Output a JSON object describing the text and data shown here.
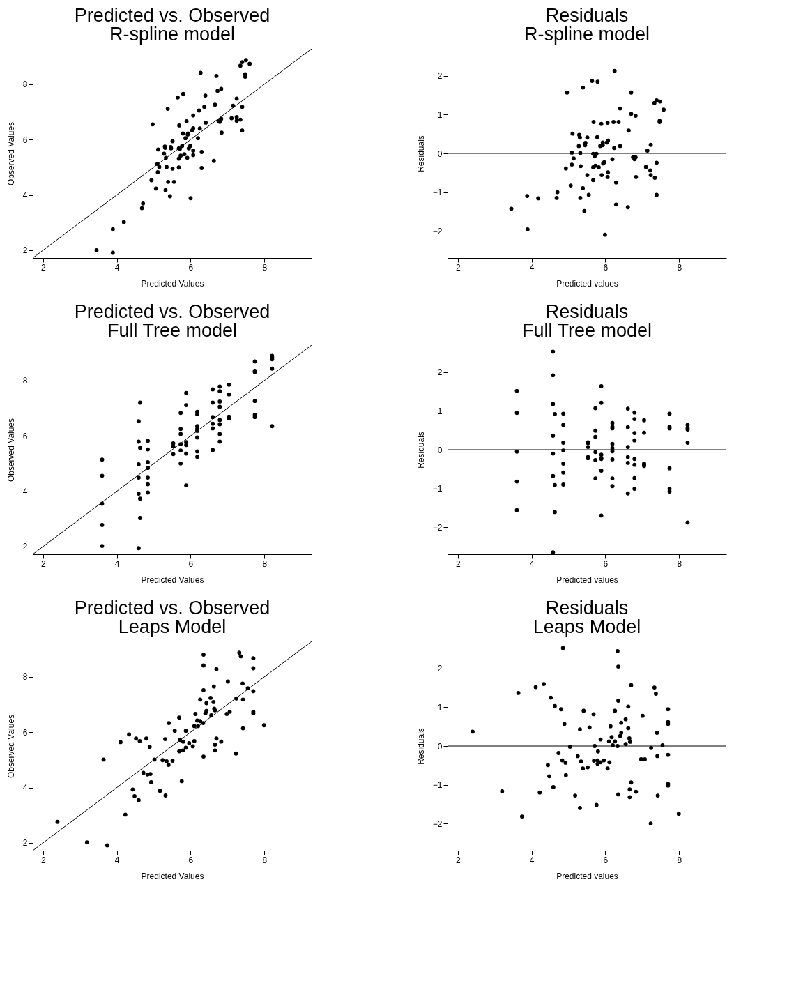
{
  "chart_data": [
    {
      "type": "scatter",
      "title": "Predicted vs. Observed",
      "subtitle": "R-spline model",
      "xlabel": "Predicted Values",
      "ylabel": "Observed Values",
      "xlim": [
        1.72,
        9.28
      ],
      "ylim": [
        1.72,
        9.28
      ],
      "xticks": [
        2,
        4,
        6,
        8
      ],
      "yticks": [
        2,
        4,
        6,
        8
      ],
      "series": [
        {
          "type": "scatter",
          "marker": "circle",
          "color": "#000000",
          "x": [
            3.45,
            3.89,
            3.89,
            4.19,
            4.71,
            4.68,
            4.94,
            5.06,
            5.32,
            5.44,
            5.39,
            5.55,
            6.0,
            4.97,
            5.11,
            5.1,
            5.15,
            5.35,
            5.51,
            5.68,
            5.12,
            5.28,
            5.33,
            5.3,
            5.31,
            5.46,
            5.47,
            5.51,
            5.38,
            5.65,
            5.8,
            5.69,
            5.68,
            5.71,
            5.77,
            5.73,
            5.83,
            5.68,
            5.91,
            5.79,
            5.86,
            5.92,
            5.93,
            5.89,
            6.04,
            6.07,
            5.95,
            5.99,
            6.07,
            6.07,
            6.07,
            6.2,
            6.25,
            6.3,
            6.3,
            6.27,
            6.23,
            6.37,
            6.4,
            6.41,
            6.66,
            6.63,
            6.7,
            6.73,
            6.83,
            6.76,
            6.79,
            6.83,
            6.84,
            7.11,
            7.15,
            7.25,
            7.25,
            7.25,
            7.35,
            7.4,
            7.4,
            7.35,
            7.4,
            7.5,
            7.6,
            7.48,
            7.48
          ],
          "values": [
            2.0,
            1.91,
            2.76,
            3.02,
            3.69,
            3.52,
            4.53,
            4.23,
            4.17,
            3.95,
            4.47,
            4.47,
            3.88,
            6.55,
            4.82,
            5.12,
            5.01,
            5.01,
            4.95,
            4.99,
            5.64,
            5.49,
            5.34,
            5.75,
            5.7,
            5.73,
            5.68,
            5.94,
            7.11,
            7.52,
            7.65,
            6.51,
            5.68,
            5.67,
            5.77,
            5.42,
            5.47,
            5.31,
            5.34,
            6.22,
            6.05,
            6.18,
            6.22,
            6.66,
            6.33,
            6.41,
            5.68,
            5.77,
            5.6,
            5.44,
            6.87,
            6.05,
            6.4,
            5.55,
            4.97,
            8.41,
            7.05,
            7.18,
            7.59,
            6.61,
            7.26,
            5.23,
            8.3,
            7.76,
            7.83,
            6.66,
            6.64,
            6.75,
            6.25,
            6.77,
            7.22,
            7.48,
            6.81,
            6.68,
            6.72,
            7.18,
            6.33,
            8.67,
            8.8,
            8.87,
            8.74,
            8.36,
            8.27
          ]
        },
        {
          "type": "line",
          "color": "#000000",
          "x": [
            1.72,
            9.28
          ],
          "values": [
            1.72,
            9.28
          ]
        }
      ]
    },
    {
      "type": "scatter",
      "title": "Residuals",
      "subtitle": "R-spline model",
      "xlabel": "Predicted values",
      "ylabel": "Residuals",
      "xlim": [
        1.72,
        9.28
      ],
      "ylim": [
        -2.7,
        2.7
      ],
      "xticks": [
        2,
        4,
        6,
        8
      ],
      "yticks": [
        -2,
        -1,
        0,
        1,
        2
      ],
      "ref_lines": [
        {
          "axis": "y",
          "value": 0
        }
      ],
      "series": [
        {
          "type": "scatter",
          "marker": "circle",
          "color": "#000000",
          "x": [
            6.25,
            5.64,
            5.79,
            5.39,
            4.96,
            6.7,
            7.39,
            7.48,
            7.33,
            7.58,
            6.4,
            6.7,
            6.82,
            7.47,
            7.47,
            5.68,
            5.89,
            6.06,
            6.22,
            6.36,
            6.63,
            5.11,
            5.29,
            5.31,
            5.51,
            5.78,
            5.46,
            5.45,
            5.28,
            5.86,
            5.93,
            5.93,
            6.04,
            6.07,
            6.24,
            6.4,
            7.23,
            7.14,
            5.09,
            5.32,
            5.67,
            5.76,
            5.71,
            5.14,
            6.19,
            6.75,
            6.79,
            6.82,
            5.97,
            5.94,
            7.39,
            5.09,
            5.33,
            5.73,
            5.67,
            5.82,
            4.93,
            7.1,
            7.22,
            5.51,
            5.9,
            6.07,
            6.06,
            6.83,
            7.23,
            7.34,
            5.67,
            6.29,
            5.06,
            5.39,
            4.7,
            3.88,
            4.18,
            4.68,
            5.32,
            5.55,
            7.39,
            6.29,
            6.61,
            3.45,
            5.43,
            3.89,
            5.99
          ],
          "values": [
            2.13,
            1.87,
            1.85,
            1.7,
            1.57,
            1.57,
            1.37,
            1.34,
            1.3,
            1.13,
            1.16,
            1.02,
            0.97,
            0.84,
            0.81,
            0.81,
            0.76,
            0.79,
            0.81,
            0.81,
            0.59,
            0.51,
            0.48,
            0.41,
            0.41,
            0.42,
            0.27,
            0.21,
            0.19,
            0.19,
            0.21,
            0.28,
            0.28,
            0.33,
            0.14,
            0.19,
            0.22,
            0.07,
            0.02,
            0.01,
            -0.01,
            -0.01,
            -0.07,
            -0.13,
            -0.15,
            -0.1,
            -0.15,
            -0.1,
            -0.23,
            -0.26,
            -0.24,
            -0.29,
            -0.33,
            -0.32,
            -0.36,
            -0.36,
            -0.39,
            -0.35,
            -0.44,
            -0.56,
            -0.56,
            -0.49,
            -0.61,
            -0.61,
            -0.56,
            -0.63,
            -0.69,
            -0.75,
            -0.83,
            -0.9,
            -1.0,
            -1.1,
            -1.16,
            -1.15,
            -1.15,
            -1.07,
            -1.07,
            -1.32,
            -1.39,
            -1.43,
            -1.49,
            -1.96,
            -2.1
          ]
        }
      ]
    },
    {
      "type": "scatter",
      "title": "Predicted vs. Observed",
      "subtitle": "Full Tree model",
      "xlabel": "Predicted Values",
      "ylabel": "Observed Values",
      "xlim": [
        1.72,
        9.28
      ],
      "ylim": [
        1.72,
        9.28
      ],
      "xticks": [
        2,
        4,
        6,
        8
      ],
      "yticks": [
        2,
        4,
        6,
        8
      ],
      "series": [
        {
          "type": "scatter",
          "marker": "circle",
          "color": "#000000",
          "x": [
            3.6,
            3.6,
            3.6,
            3.6,
            3.6,
            4.59,
            4.59,
            4.59,
            4.59,
            4.59,
            4.59,
            4.63,
            4.63,
            4.63,
            4.63,
            4.84,
            4.84,
            4.84,
            4.84,
            4.84,
            4.84,
            4.84,
            5.53,
            5.53,
            5.53,
            5.73,
            5.73,
            5.73,
            5.73,
            5.73,
            5.73,
            5.88,
            5.88,
            5.88,
            5.88,
            5.88,
            5.88,
            6.18,
            6.18,
            6.18,
            6.18,
            6.18,
            6.18,
            6.18,
            6.18,
            6.6,
            6.6,
            6.6,
            6.6,
            6.6,
            6.6,
            6.79,
            6.79,
            6.79,
            6.79,
            6.79,
            6.79,
            6.79,
            6.79,
            7.04,
            7.04,
            7.04,
            7.04,
            7.74,
            7.74,
            7.74,
            7.74,
            7.74,
            7.74,
            8.21,
            8.21,
            8.21,
            8.21,
            8.21
          ],
          "values": [
            5.14,
            4.56,
            3.55,
            2.78,
            2.02,
            6.53,
            5.79,
            4.97,
            4.49,
            3.91,
            1.94,
            7.2,
            5.57,
            3.73,
            3.03,
            5.82,
            5.51,
            5.05,
            4.84,
            4.49,
            4.25,
            3.95,
            5.73,
            5.62,
            5.34,
            6.83,
            6.25,
            6.07,
            5.7,
            5.47,
            5.0,
            7.55,
            7.11,
            5.77,
            5.67,
            5.36,
            4.21,
            6.87,
            6.78,
            6.35,
            6.25,
            6.18,
            5.94,
            5.44,
            5.24,
            7.68,
            7.2,
            6.68,
            6.44,
            6.27,
            5.49,
            7.78,
            7.61,
            7.24,
            7.05,
            6.57,
            6.42,
            6.07,
            5.79,
            7.85,
            7.5,
            6.69,
            6.64,
            8.69,
            8.35,
            8.31,
            7.26,
            6.76,
            6.68,
            8.89,
            8.83,
            8.77,
            8.43,
            6.35
          ]
        },
        {
          "type": "line",
          "color": "#000000",
          "x": [
            1.72,
            9.28
          ],
          "values": [
            1.72,
            9.28
          ]
        }
      ]
    },
    {
      "type": "scatter",
      "title": "Residuals",
      "subtitle": "Full Tree model",
      "xlabel": "Predicted values",
      "ylabel": "Residuals",
      "xlim": [
        1.72,
        9.28
      ],
      "ylim": [
        -2.7,
        2.7
      ],
      "xticks": [
        2,
        4,
        6,
        8
      ],
      "yticks": [
        -2,
        -1,
        0,
        1,
        2
      ],
      "ref_lines": [
        {
          "axis": "y",
          "value": 0
        }
      ],
      "series": [
        {
          "type": "scatter",
          "marker": "circle",
          "color": "#000000",
          "x": [
            3.6,
            3.6,
            3.6,
            3.6,
            3.6,
            4.58,
            4.58,
            4.58,
            4.58,
            4.58,
            4.58,
            4.58,
            4.63,
            4.63,
            4.63,
            4.86,
            4.86,
            4.86,
            4.86,
            4.86,
            4.86,
            4.86,
            5.53,
            5.53,
            5.53,
            5.53,
            5.53,
            5.73,
            5.73,
            5.73,
            5.73,
            5.73,
            5.73,
            5.89,
            5.89,
            5.89,
            5.89,
            5.89,
            5.89,
            5.89,
            6.19,
            6.19,
            6.19,
            6.19,
            6.19,
            6.19,
            6.19,
            6.19,
            6.19,
            6.61,
            6.61,
            6.61,
            6.61,
            6.61,
            6.61,
            6.79,
            6.79,
            6.79,
            6.79,
            6.79,
            6.79,
            6.79,
            6.79,
            7.05,
            7.05,
            7.05,
            7.05,
            7.05,
            7.74,
            7.74,
            7.74,
            7.74,
            7.74,
            7.74,
            8.23,
            8.23,
            8.23,
            8.23,
            8.23
          ],
          "values": [
            1.52,
            0.95,
            -0.05,
            -0.82,
            -1.56,
            2.53,
            1.92,
            1.18,
            0.36,
            -0.1,
            -0.68,
            -2.65,
            0.92,
            -0.91,
            -1.61,
            0.93,
            0.64,
            0.18,
            -0.02,
            -0.36,
            -0.59,
            -0.9,
            0.19,
            0.17,
            0.07,
            -0.19,
            -0.22,
            1.07,
            0.49,
            0.33,
            -0.06,
            -0.27,
            -0.74,
            1.64,
            1.21,
            -0.13,
            -0.22,
            -0.24,
            -0.54,
            -1.7,
            0.69,
            0.59,
            0.55,
            0.15,
            0.04,
            -0.04,
            -0.25,
            -0.74,
            -0.94,
            1.06,
            0.58,
            0.07,
            -0.19,
            -0.34,
            -1.13,
            0.96,
            0.79,
            0.43,
            0.24,
            -0.24,
            -0.39,
            -0.73,
            -1.01,
            0.76,
            0.44,
            -0.36,
            -0.39,
            -0.42,
            0.93,
            0.59,
            0.55,
            -0.48,
            -1.01,
            -1.08,
            0.64,
            0.56,
            0.52,
            0.18,
            -1.88
          ]
        }
      ]
    },
    {
      "type": "scatter",
      "title": "Predicted vs. Observed",
      "subtitle": "Leaps Model",
      "xlabel": "Predicted Values",
      "ylabel": "Observed Values",
      "xlim": [
        1.72,
        9.28
      ],
      "ylim": [
        1.72,
        9.28
      ],
      "xticks": [
        2,
        4,
        6,
        8
      ],
      "yticks": [
        2,
        4,
        6,
        8
      ],
      "series": [
        {
          "type": "scatter",
          "marker": "circle",
          "color": "#000000",
          "x": [
            2.39,
            3.19,
            3.74,
            3.64,
            4.23,
            4.1,
            4.33,
            4.52,
            4.62,
            4.8,
            4.89,
            4.43,
            4.48,
            4.59,
            4.72,
            4.83,
            4.91,
            4.93,
            5.02,
            5.17,
            5.32,
            5.24,
            5.35,
            5.4,
            5.51,
            5.31,
            5.41,
            5.57,
            5.69,
            5.87,
            5.71,
            5.8,
            5.69,
            5.79,
            5.87,
            5.96,
            6.06,
            6.1,
            5.76,
            6.1,
            6.2,
            6.18,
            6.26,
            6.34,
            6.13,
            6.26,
            6.35,
            6.35,
            6.35,
            6.35,
            6.4,
            6.43,
            6.43,
            6.54,
            6.62,
            6.63,
            6.64,
            6.66,
            6.56,
            6.7,
            6.7,
            6.66,
            6.66,
            6.83,
            6.98,
            7.06,
            7.01,
            7.23,
            7.24,
            7.32,
            7.36,
            7.41,
            7.42,
            7.42,
            7.55,
            7.7,
            7.7,
            7.7,
            7.7,
            7.7,
            7.99
          ],
          "values": [
            2.76,
            2.02,
            1.91,
            5.01,
            3.02,
            5.64,
            5.92,
            5.77,
            5.68,
            5.77,
            5.47,
            3.93,
            3.69,
            3.54,
            4.53,
            4.47,
            4.49,
            4.19,
            5.01,
            3.88,
            3.71,
            4.99,
            4.95,
            4.82,
            4.97,
            5.75,
            6.33,
            6.05,
            6.53,
            6.05,
            5.72,
            5.66,
            5.31,
            5.34,
            5.44,
            5.6,
            5.49,
            5.68,
            4.23,
            6.22,
            6.22,
            6.42,
            6.4,
            6.33,
            6.66,
            7.18,
            7.52,
            8.8,
            8.41,
            5.12,
            6.68,
            6.77,
            7.05,
            7.24,
            7.09,
            7.65,
            6.85,
            6.79,
            6.61,
            8.28,
            5.77,
            5.55,
            5.34,
            5.66,
            6.66,
            6.74,
            7.83,
            5.23,
            7.22,
            8.87,
            8.74,
            7.76,
            7.18,
            6.14,
            7.59,
            8.67,
            8.31,
            7.48,
            6.74,
            6.68,
            6.25
          ]
        },
        {
          "type": "line",
          "color": "#000000",
          "x": [
            1.72,
            9.28
          ],
          "values": [
            1.72,
            9.28
          ]
        }
      ]
    },
    {
      "type": "scatter",
      "title": "Residuals",
      "subtitle": "Leaps Model",
      "xlabel": "Predicted values",
      "ylabel": "Residuals",
      "xlim": [
        1.72,
        9.28
      ],
      "ylim": [
        -2.7,
        2.7
      ],
      "xticks": [
        2,
        4,
        6,
        8
      ],
      "yticks": [
        -2,
        -1,
        0,
        1,
        2
      ],
      "ref_lines": [
        {
          "axis": "y",
          "value": 0
        }
      ],
      "series": [
        {
          "type": "scatter",
          "marker": "circle",
          "color": "#000000",
          "x": [
            4.85,
            6.33,
            6.35,
            2.4,
            3.64,
            4.11,
            4.33,
            4.52,
            4.63,
            4.8,
            4.89,
            5.41,
            5.68,
            5.31,
            5.57,
            6.26,
            6.35,
            6.62,
            6.7,
            6.14,
            6.43,
            6.55,
            6.62,
            6.43,
            6.4,
            6.17,
            6.1,
            6.26,
            6.65,
            6.67,
            6.55,
            6.2,
            6.33,
            5.87,
            5.71,
            5.04,
            7.01,
            7.33,
            7.37,
            7.7,
            7.7,
            7.7,
            7.4,
            7.55,
            7.24,
            7.41,
            7.7,
            6.97,
            7.07,
            5.8,
            4.73,
            5.25,
            4.83,
            4.92,
            5.34,
            5.69,
            5.79,
            5.87,
            5.96,
            5.79,
            6.11,
            5.39,
            5.52,
            6.06,
            4.44,
            4.48,
            4.93,
            4.59,
            3.2,
            4.22,
            5.18,
            5.31,
            5.76,
            6.35,
            6.66,
            6.66,
            6.7,
            6.83,
            7.42,
            7.7,
            7.7,
            3.74,
            7.23,
            7.99
          ],
          "values": [
            2.53,
            2.45,
            2.05,
            0.37,
            1.37,
            1.52,
            1.6,
            1.25,
            1.03,
            0.95,
            0.57,
            0.91,
            0.82,
            0.43,
            0.48,
            0.91,
            1.17,
            1.02,
            1.57,
            0.51,
            0.6,
            0.69,
            0.46,
            0.34,
            0.26,
            0.23,
            0.12,
            0.12,
            0.2,
            0.11,
            0.05,
            0.02,
            0.0,
            0.17,
            0.0,
            -0.02,
            0.78,
            1.51,
            1.35,
            0.95,
            0.62,
            0.57,
            0.34,
            0.02,
            -0.05,
            -0.26,
            -0.23,
            -0.34,
            -0.34,
            -0.14,
            -0.18,
            -0.26,
            -0.37,
            -0.43,
            -0.4,
            -0.38,
            -0.37,
            -0.42,
            -0.37,
            -0.46,
            -0.42,
            -0.58,
            -0.55,
            -0.58,
            -0.49,
            -0.78,
            -0.75,
            -1.06,
            -1.17,
            -1.2,
            -1.28,
            -1.6,
            -1.52,
            -1.25,
            -1.12,
            -1.32,
            -0.94,
            -1.18,
            -1.28,
            -0.98,
            -1.02,
            -1.82,
            -2.0,
            -1.75
          ]
        }
      ]
    }
  ]
}
